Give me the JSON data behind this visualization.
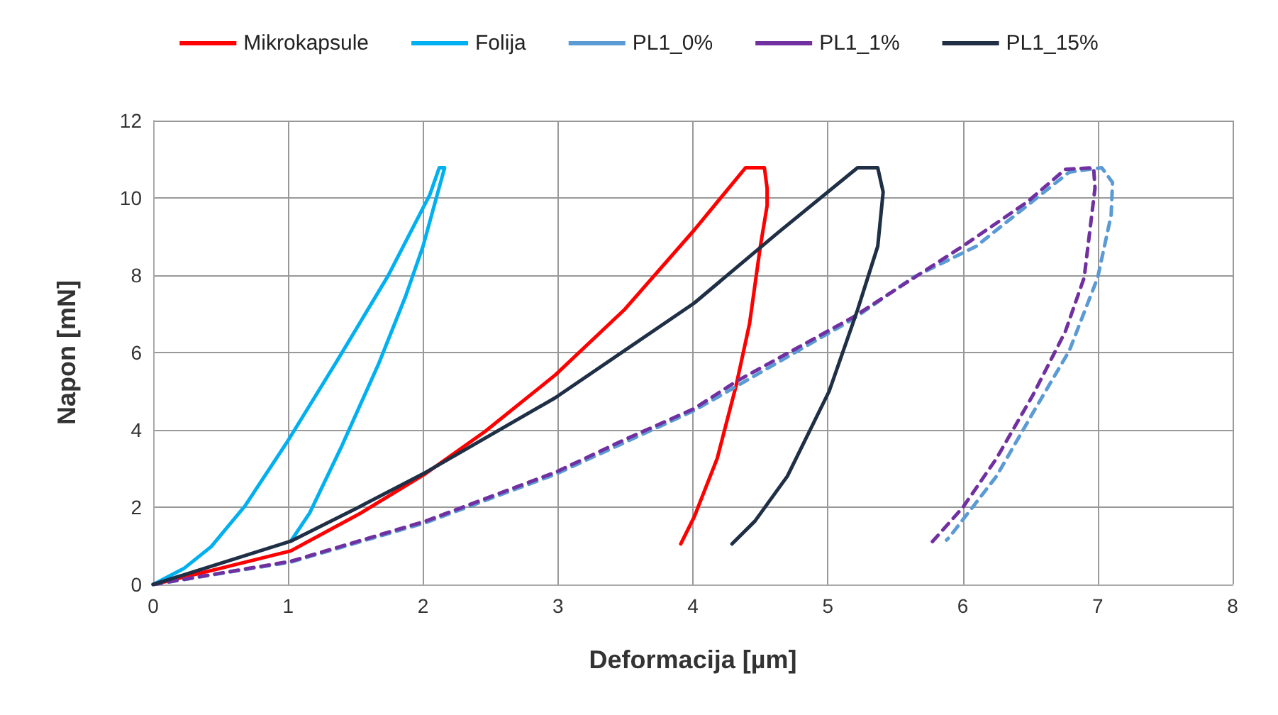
{
  "chart_data": {
    "type": "line",
    "xlabel": "Deformacija [µm]",
    "ylabel": "Napon [mN]",
    "xlim": [
      0,
      8
    ],
    "xticks": [
      0,
      1,
      2,
      3,
      4,
      5,
      6,
      7,
      8
    ],
    "ylim": [
      0,
      12
    ],
    "yticks": [
      0,
      2,
      4,
      6,
      8,
      10,
      12
    ],
    "grid": true,
    "legend": "top",
    "marker": "none",
    "series": [
      {
        "name": "Mikrokapsule",
        "color": "#ff0000",
        "line_style": "solid",
        "x": [
          0,
          0.5,
          1.02,
          1.54,
          2.02,
          2.46,
          2.98,
          3.49,
          4.01,
          4.39,
          4.53,
          4.55,
          4.55,
          4.5,
          4.42,
          4.32,
          4.18,
          4.01,
          3.91
        ],
        "values": [
          0,
          0.42,
          0.87,
          1.85,
          2.87,
          3.96,
          5.42,
          7.1,
          9.17,
          10.78,
          10.78,
          10.25,
          9.8,
          8.75,
          6.75,
          5.14,
          3.26,
          1.75,
          1.05
        ]
      },
      {
        "name": "Folija",
        "color": "#00b0f0",
        "line_style": "solid",
        "x": [
          0,
          0.23,
          0.43,
          0.68,
          0.99,
          1.36,
          1.74,
          2.05,
          2.12,
          2.16,
          2.13,
          2.0,
          1.87,
          1.67,
          1.4,
          1.16,
          1.02
        ],
        "values": [
          0,
          0.42,
          0.98,
          2.03,
          3.67,
          5.77,
          7.98,
          10.08,
          10.78,
          10.78,
          10.4,
          8.75,
          7.45,
          5.7,
          3.6,
          1.85,
          1.12
        ]
      },
      {
        "name": "PL1_0%",
        "color": "#5b9bd5",
        "line_style": "dashed",
        "x": [
          0,
          1.02,
          2.02,
          2.98,
          4.01,
          5.18,
          5.63,
          6.1,
          6.79,
          7.03,
          7.11,
          7.1,
          7.0,
          6.79,
          6.52,
          6.25,
          5.9,
          5.88
        ],
        "values": [
          0,
          0.58,
          1.6,
          2.85,
          4.5,
          6.85,
          7.94,
          8.75,
          10.67,
          10.78,
          10.4,
          9.56,
          7.94,
          6.05,
          4.44,
          2.8,
          1.22,
          1.15
        ]
      },
      {
        "name": "PL1_1%",
        "color": "#7030a0",
        "line_style": "dashed",
        "x": [
          0,
          1.02,
          2.02,
          2.98,
          3.49,
          4.01,
          4.32,
          5.18,
          6.0,
          6.48,
          6.76,
          6.97,
          6.98,
          6.9,
          6.76,
          6.52,
          6.25,
          6.0,
          5.76
        ],
        "values": [
          0,
          0.6,
          1.64,
          2.9,
          3.74,
          4.55,
          5.25,
          6.9,
          8.75,
          9.9,
          10.74,
          10.78,
          10.25,
          7.94,
          6.54,
          4.9,
          3.26,
          1.99,
          1.05
        ]
      },
      {
        "name": "PL1_15%",
        "color": "#1f2f45",
        "line_style": "solid",
        "x": [
          0,
          1.02,
          1.54,
          2.02,
          2.98,
          4.01,
          4.63,
          5.22,
          5.37,
          5.41,
          5.37,
          5.22,
          5.01,
          4.7,
          4.46,
          4.29
        ],
        "values": [
          0,
          1.12,
          2.03,
          2.9,
          4.83,
          7.28,
          9.1,
          10.78,
          10.78,
          10.15,
          8.75,
          7.1,
          5.0,
          2.8,
          1.64,
          1.05
        ]
      }
    ]
  }
}
